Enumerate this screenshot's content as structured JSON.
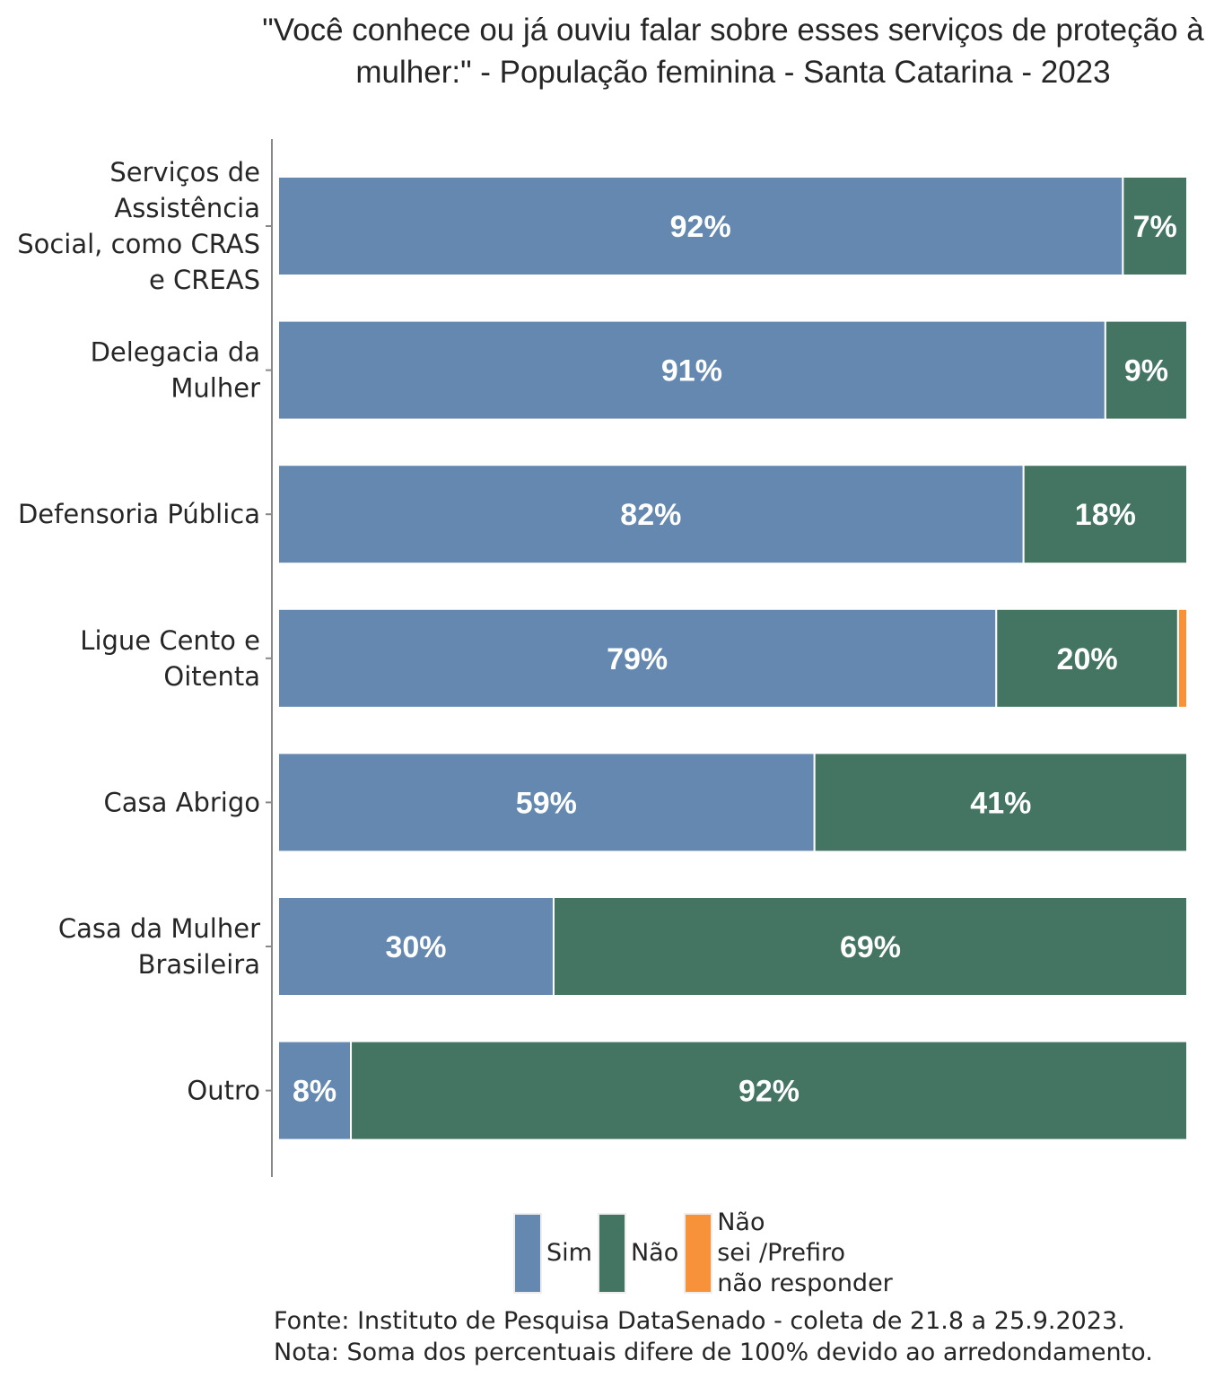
{
  "chart_data": {
    "type": "bar",
    "orientation": "horizontal",
    "stacked": true,
    "title": "\"Você conhece ou já ouviu falar sobre esses serviços de proteção à mulher:\" - População feminina - Santa Catarina - 2023",
    "categories": [
      "Serviços de Assistência Social, como CRAS e CREAS",
      "Delegacia da Mulher",
      "Defensoria Pública",
      "Ligue Cento e Oitenta",
      "Casa Abrigo",
      "Casa da Mulher Brasileira",
      "Outro"
    ],
    "category_lines": [
      [
        "Serviços de",
        "Assistência",
        "Social, como CRAS",
        "e CREAS"
      ],
      [
        "Delegacia da",
        "Mulher"
      ],
      [
        "Defensoria Pública"
      ],
      [
        "Ligue Cento e",
        "Oitenta"
      ],
      [
        "Casa Abrigo"
      ],
      [
        "Casa da Mulher",
        "Brasileira"
      ],
      [
        "Outro"
      ]
    ],
    "series": [
      {
        "name": "Sim",
        "color": "#6488AF",
        "values": [
          92,
          91,
          82,
          79,
          59,
          30,
          8
        ]
      },
      {
        "name": "Não",
        "color": "#447462",
        "values": [
          7,
          9,
          18,
          20,
          41,
          69,
          92
        ]
      },
      {
        "name": "Não sei /Prefiro não responder",
        "color": "#F8923A",
        "values": [
          0,
          0,
          0,
          1,
          0,
          0,
          0
        ]
      }
    ],
    "value_labels": [
      [
        "92%",
        "7%",
        ""
      ],
      [
        "91%",
        "9%",
        ""
      ],
      [
        "82%",
        "18%",
        ""
      ],
      [
        "79%",
        "20%",
        ""
      ],
      [
        "59%",
        "41%",
        ""
      ],
      [
        "30%",
        "69%",
        ""
      ],
      [
        "8%",
        "92%",
        ""
      ]
    ],
    "xlabel": "",
    "ylabel": "",
    "xlim": [
      0,
      100
    ],
    "grid": false,
    "legend_position": "bottom"
  },
  "legend": {
    "items": [
      {
        "label": "Sim",
        "color": "#6488AF"
      },
      {
        "label": "Não",
        "color": "#447462"
      },
      {
        "label": "Não\nsei /Prefiro\nnão responder",
        "color": "#F8923A"
      }
    ]
  },
  "footer": {
    "source": "Fonte: Instituto de Pesquisa DataSenado - coleta de 21.8 a 25.9.2023.",
    "note": "Nota: Soma dos percentuais difere de 100% devido ao arredondamento."
  }
}
